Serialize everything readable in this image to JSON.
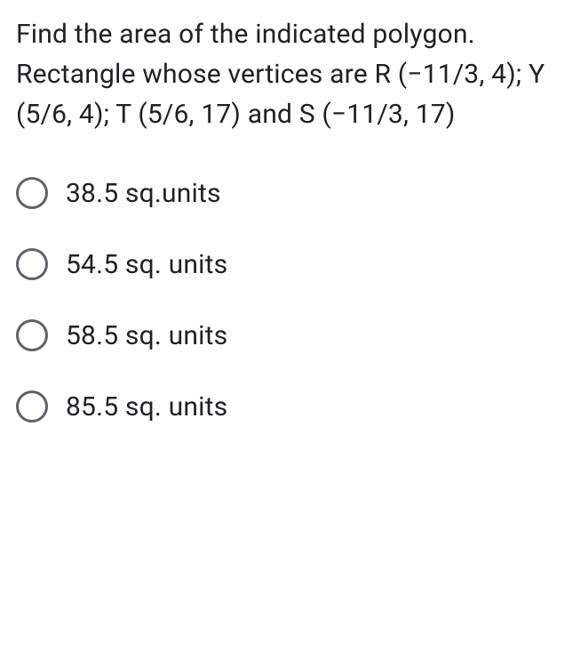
{
  "question": {
    "text": "Find the area of the indicated polygon. Rectangle whose vertices are R (−11/3, 4); Y (5/6, 4); T (5/6, 17) and S (−11/3, 17)",
    "fontsize": 30,
    "color": "#202124"
  },
  "options": [
    {
      "label": "38.5 sq.units",
      "selected": false
    },
    {
      "label": "54.5 sq. units",
      "selected": false
    },
    {
      "label": "58.5 sq. units",
      "selected": false
    },
    {
      "label": "85.5 sq. units",
      "selected": false
    }
  ],
  "styling": {
    "background_color": "#ffffff",
    "text_color": "#202124",
    "radio_border_color": "#5f6368",
    "radio_size": 36,
    "radio_border_width": 3,
    "option_fontsize": 30,
    "option_gap": 44,
    "font_family": "Roboto, Arial, sans-serif"
  },
  "type": "multiple-choice-question"
}
